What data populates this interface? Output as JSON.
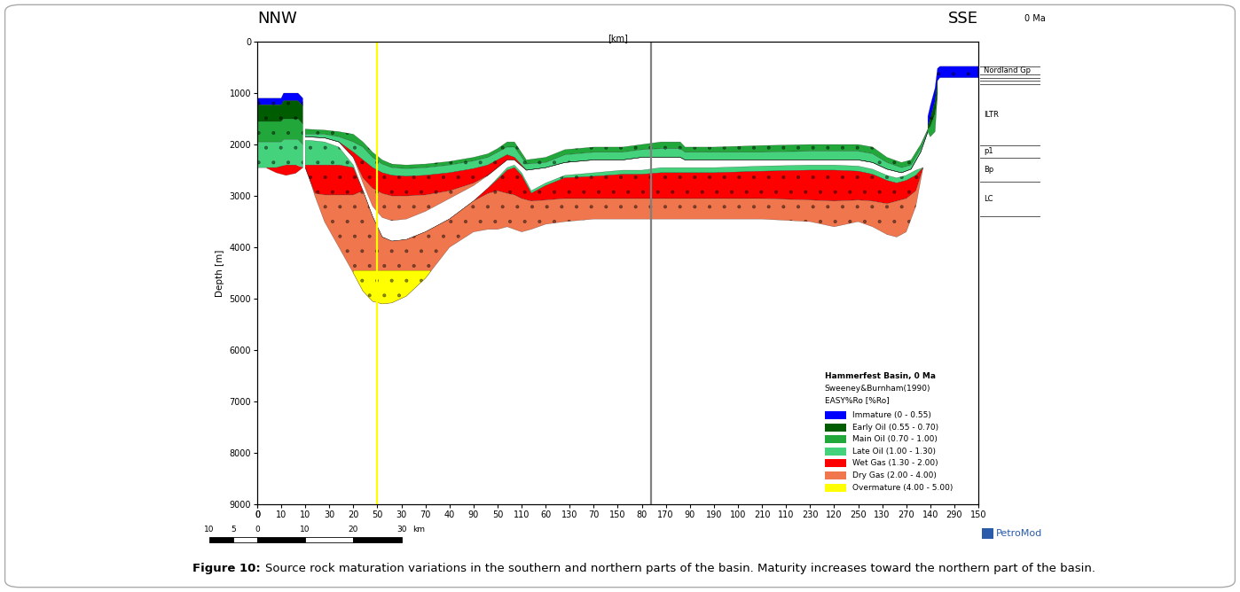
{
  "chart_data": {
    "type": "cross_section",
    "left_label": "NNW",
    "right_label": "SSE",
    "age_label": "0 Ma",
    "x_label": "[km]",
    "y_label": "Depth [m]",
    "xlim": [
      0,
      150
    ],
    "xticks": [
      0,
      10,
      20,
      30,
      40,
      50,
      60,
      70,
      80,
      90,
      100,
      110,
      120,
      130,
      140,
      150
    ],
    "x2lim": [
      0,
      300
    ],
    "x2ticks": [
      0,
      10,
      30,
      50,
      70,
      90,
      110,
      130,
      150,
      170,
      190,
      210,
      230,
      250,
      270,
      290
    ],
    "ylim": [
      9000,
      0
    ],
    "yticks": [
      0,
      1000,
      2000,
      3000,
      4000,
      5000,
      6000,
      7000,
      8000,
      9000
    ],
    "legend": "lower right",
    "legend_title": [
      "Hammerfest Basin, 0 Ma",
      "Sweeney&Burnham(1990)",
      "EASY%Ro [%Ro]"
    ],
    "zones": [
      {
        "name": "Immature (0 - 0.55)",
        "color": "#0000ff"
      },
      {
        "name": "Early Oil (0.55 - 0.70)",
        "color": "#005c00"
      },
      {
        "name": "Main Oil (0.70 - 1.00)",
        "color": "#22a83a"
      },
      {
        "name": "Late Oil (1.00 - 1.30)",
        "color": "#44d27c"
      },
      {
        "name": "Wet Gas (1.30 - 2.00)",
        "color": "#ff0000"
      },
      {
        "name": "Dry Gas (2.00 - 4.00)",
        "color": "#f0764e"
      },
      {
        "name": "Overmature (4.00 - 5.00)",
        "color": "#ffff00"
      }
    ],
    "bands": [
      {
        "zone": "Immature (0 - 0.55)",
        "x": [
          0,
          5,
          5.5,
          8.5,
          9,
          9.5
        ],
        "top": [
          1100,
          1100,
          1000,
          1000,
          1050,
          1100
        ],
        "base": [
          1230,
          1230,
          1150,
          1150,
          1200,
          1250
        ]
      },
      {
        "zone": "Early Oil (0.55 - 0.70)",
        "x": [
          0,
          5,
          5.5,
          8.5,
          9,
          9.5
        ],
        "top": [
          1230,
          1230,
          1150,
          1150,
          1200,
          1250
        ],
        "base": [
          1550,
          1550,
          1500,
          1500,
          1550,
          1600
        ]
      },
      {
        "zone": "Main Oil (0.70 - 1.00)",
        "x": [
          0,
          5,
          5.5,
          8.5,
          9,
          9.5
        ],
        "top": [
          1550,
          1550,
          1500,
          1500,
          1550,
          1600
        ],
        "base": [
          1950,
          1950,
          1900,
          1900,
          1950,
          2000
        ]
      },
      {
        "zone": "Late Oil (1.00 - 1.30)",
        "x": [
          0,
          5,
          5.5,
          8.5,
          9,
          9.5
        ],
        "top": [
          1950,
          1950,
          1900,
          1900,
          1950,
          2000
        ],
        "base": [
          2450,
          2450,
          2400,
          2400,
          2420,
          2450
        ]
      },
      {
        "zone": "Wet Gas (1.30 - 2.00)",
        "x": [
          2,
          4,
          6,
          8,
          9.5
        ],
        "top": [
          2450,
          2450,
          2400,
          2400,
          2450
        ],
        "base": [
          2460,
          2550,
          2600,
          2560,
          2450
        ]
      },
      {
        "zone": "Main Oil (0.70 - 1.00)",
        "x": [
          10,
          14,
          17,
          20,
          22,
          24,
          26,
          28,
          31,
          35,
          40,
          45,
          48,
          50,
          52,
          53.5,
          56,
          60,
          64,
          70,
          76,
          80,
          84,
          88,
          89,
          95,
          105,
          115,
          125,
          128,
          131,
          134,
          136,
          138,
          139.5
        ],
        "top": [
          1700,
          1720,
          1750,
          1800,
          1950,
          2150,
          2300,
          2380,
          2400,
          2380,
          2330,
          2250,
          2180,
          2080,
          1950,
          1950,
          2300,
          2250,
          2100,
          2050,
          2050,
          2000,
          1950,
          1950,
          2050,
          2050,
          2020,
          2000,
          2000,
          2050,
          2250,
          2350,
          2300,
          2000,
          1700
        ],
        "base": [
          1800,
          1800,
          1850,
          1950,
          2050,
          2250,
          2380,
          2450,
          2470,
          2450,
          2400,
          2320,
          2250,
          2150,
          2050,
          2050,
          2380,
          2350,
          2200,
          2150,
          2150,
          2100,
          2080,
          2080,
          2150,
          2150,
          2150,
          2130,
          2130,
          2180,
          2350,
          2450,
          2400,
          2080,
          1720
        ]
      },
      {
        "zone": "Late Oil (1.00 - 1.30)",
        "x": [
          10,
          14,
          17,
          20,
          22,
          24,
          26,
          28,
          31,
          35,
          40,
          45,
          48,
          50,
          52,
          53.5,
          56,
          60,
          64,
          70,
          76,
          80,
          84,
          88,
          89,
          95,
          105,
          115,
          125,
          128,
          131,
          134,
          136,
          138,
          139.5
        ],
        "top": [
          1800,
          1800,
          1850,
          1950,
          2050,
          2250,
          2380,
          2450,
          2470,
          2450,
          2400,
          2320,
          2250,
          2150,
          2050,
          2050,
          2380,
          2350,
          2200,
          2150,
          2150,
          2100,
          2080,
          2080,
          2150,
          2150,
          2150,
          2130,
          2130,
          2180,
          2350,
          2450,
          2400,
          2080,
          1720
        ],
        "base": [
          1850,
          1870,
          1950,
          2150,
          2300,
          2450,
          2550,
          2600,
          2620,
          2600,
          2550,
          2470,
          2400,
          2300,
          2200,
          2250,
          2500,
          2450,
          2350,
          2300,
          2300,
          2250,
          2250,
          2250,
          2300,
          2300,
          2300,
          2300,
          2300,
          2350,
          2480,
          2550,
          2480,
          2150,
          1750
        ]
      },
      {
        "zone": "Wet Gas (1.30 - 2.00)",
        "x": [
          10,
          14,
          17,
          20,
          22,
          24,
          26,
          28,
          31,
          35,
          40,
          45,
          48,
          50,
          52,
          53.5,
          56,
          60,
          64,
          70,
          76,
          80,
          84,
          88,
          89,
          95,
          105,
          115,
          125,
          128,
          131,
          134,
          136,
          138,
          139.5
        ],
        "top": [
          1850,
          1870,
          1950,
          2150,
          2300,
          2450,
          2550,
          2600,
          2620,
          2600,
          2550,
          2470,
          2400,
          2300,
          2200,
          2250,
          2500,
          2450,
          2350,
          2300,
          2300,
          2250,
          2250,
          2250,
          2300,
          2300,
          2300,
          2300,
          2300,
          2350,
          2480,
          2550,
          2480,
          2150,
          1750
        ],
        "base": [
          1850,
          1870,
          1950,
          2250,
          2650,
          2850,
          2950,
          3000,
          3000,
          2980,
          2900,
          2750,
          2600,
          2450,
          2300,
          2300,
          2500,
          2450,
          2350,
          2300,
          2300,
          2250,
          2250,
          2250,
          2300,
          2300,
          2300,
          2300,
          2300,
          2350,
          2480,
          2550,
          2480,
          2150,
          1750
        ]
      },
      {
        "zone": "Dry Gas (2.00 - 4.00)",
        "x": [
          10,
          14,
          17,
          20,
          22,
          24,
          26,
          28,
          31,
          35,
          40,
          45,
          48,
          50,
          52,
          53.5,
          56,
          60,
          64,
          70,
          76,
          80,
          84,
          88,
          89,
          95,
          105,
          115,
          125,
          128,
          131,
          134,
          136,
          138,
          139.5
        ],
        "top": [
          1850,
          1870,
          1950,
          2250,
          2650,
          2850,
          2950,
          3000,
          3000,
          2980,
          2900,
          2750,
          2600,
          2450,
          2300,
          2300,
          2500,
          2450,
          2350,
          2300,
          2300,
          2250,
          2250,
          2250,
          2300,
          2300,
          2300,
          2300,
          2300,
          2350,
          2480,
          2550,
          2480,
          2150,
          1750
        ],
        "base": [
          1850,
          1870,
          1950,
          2250,
          2750,
          3200,
          3420,
          3480,
          3450,
          3300,
          3050,
          2800,
          2600,
          2450,
          2300,
          2300,
          2500,
          2450,
          2350,
          2300,
          2300,
          2250,
          2250,
          2250,
          2300,
          2300,
          2300,
          2300,
          2300,
          2350,
          2480,
          2550,
          2480,
          2150,
          1750
        ]
      },
      {
        "zone": "Late Oil (1.00 - 1.30)",
        "x": [
          10,
          11,
          12,
          14,
          17,
          20,
          22,
          24,
          26,
          28,
          31,
          35,
          40,
          45,
          48,
          50,
          52,
          53.5,
          55,
          57,
          60,
          64,
          70,
          76,
          80,
          84,
          88,
          95,
          105,
          115,
          120,
          125,
          128,
          131,
          133,
          135,
          137,
          138.5
        ],
        "top": [
          1920,
          1920,
          1930,
          1950,
          2050,
          2400,
          2900,
          3400,
          3800,
          3880,
          3850,
          3700,
          3450,
          3100,
          2850,
          2650,
          2450,
          2400,
          2550,
          2900,
          2750,
          2600,
          2550,
          2500,
          2500,
          2450,
          2450,
          2450,
          2420,
          2400,
          2400,
          2420,
          2480,
          2600,
          2650,
          2600,
          2500,
          2450
        ],
        "base": [
          2400,
          2400,
          2400,
          2400,
          2400,
          2450,
          2900,
          3400,
          3800,
          3880,
          3850,
          3700,
          3450,
          3100,
          2850,
          2680,
          2500,
          2450,
          2600,
          2950,
          2800,
          2650,
          2620,
          2580,
          2580,
          2550,
          2550,
          2550,
          2520,
          2500,
          2500,
          2520,
          2580,
          2700,
          2750,
          2700,
          2600,
          2450
        ]
      },
      {
        "zone": "Wet Gas (1.30 - 2.00)",
        "x": [
          10,
          11,
          12,
          14,
          17,
          20,
          22,
          24,
          26,
          28,
          31,
          35,
          40,
          45,
          48,
          50,
          52,
          53.5,
          55,
          57,
          60,
          64,
          70,
          76,
          80,
          84,
          88,
          95,
          105,
          115,
          120,
          125,
          128,
          131,
          133,
          135,
          137,
          138.5
        ],
        "top": [
          2400,
          2400,
          2400,
          2400,
          2400,
          2450,
          2900,
          3400,
          3800,
          3880,
          3850,
          3700,
          3450,
          3100,
          2850,
          2680,
          2500,
          2450,
          2600,
          2950,
          2800,
          2650,
          2620,
          2580,
          2580,
          2550,
          2550,
          2550,
          2520,
          2500,
          2500,
          2520,
          2580,
          2700,
          2750,
          2700,
          2600,
          2450
        ],
        "base": [
          2450,
          2700,
          2950,
          2980,
          2980,
          2980,
          2900,
          3400,
          3800,
          3880,
          3850,
          3700,
          3450,
          3100,
          2950,
          2900,
          2950,
          2980,
          3050,
          3100,
          3080,
          3050,
          3050,
          3050,
          3050,
          3050,
          3050,
          3050,
          3050,
          3080,
          3100,
          3080,
          3100,
          3150,
          3100,
          3050,
          2900,
          2450
        ]
      },
      {
        "zone": "Dry Gas (2.00 - 4.00)",
        "x": [
          10,
          11,
          12,
          14,
          17,
          20,
          22,
          24,
          26,
          28,
          31,
          35,
          40,
          45,
          48,
          50,
          52,
          53.5,
          55,
          57,
          60,
          64,
          70,
          76,
          80,
          84,
          88,
          95,
          105,
          115,
          120,
          125,
          128,
          131,
          133,
          135,
          137,
          138.5
        ],
        "top": [
          2450,
          2700,
          2950,
          2980,
          2980,
          2980,
          2900,
          3400,
          3800,
          3880,
          3850,
          3700,
          3450,
          3100,
          2950,
          2900,
          2950,
          2980,
          3050,
          3100,
          3080,
          3050,
          3050,
          3050,
          3050,
          3050,
          3050,
          3050,
          3050,
          3080,
          3100,
          3080,
          3100,
          3150,
          3100,
          3050,
          2900,
          2450
        ],
        "base": [
          2450,
          2700,
          3000,
          3500,
          4000,
          4500,
          4850,
          5050,
          5100,
          5080,
          4950,
          4600,
          4000,
          3700,
          3650,
          3650,
          3600,
          3650,
          3700,
          3650,
          3550,
          3500,
          3450,
          3450,
          3450,
          3450,
          3450,
          3450,
          3450,
          3500,
          3600,
          3500,
          3600,
          3750,
          3800,
          3700,
          3200,
          2450
        ]
      },
      {
        "zone": "Overmature (4.00 - 5.00)",
        "x": [
          20,
          22,
          24,
          26,
          28,
          31,
          35,
          36
        ],
        "top": [
          4450,
          4450,
          4450,
          4450,
          4450,
          4450,
          4450,
          4450
        ],
        "base": [
          4500,
          4850,
          5050,
          5100,
          5080,
          4950,
          4600,
          4480
        ]
      },
      {
        "zone": "Immature (0 - 0.55)",
        "x": [
          139.5,
          140,
          141,
          141.5,
          142,
          150
        ],
        "top": [
          1450,
          1250,
          900,
          520,
          480,
          480
        ],
        "base": [
          1650,
          1500,
          1150,
          760,
          700,
          700
        ]
      },
      {
        "zone": "Early Oil (0.55 - 0.70)",
        "x": [
          139.5,
          140,
          141,
          141.5
        ],
        "top": [
          1650,
          1500,
          1150,
          760
        ],
        "base": [
          1700,
          1650,
          1400,
          1000
        ]
      },
      {
        "zone": "Main Oil (0.70 - 1.00)",
        "x": [
          139.5,
          140,
          141,
          141.5
        ],
        "top": [
          1700,
          1650,
          1400,
          1000
        ],
        "base": [
          1750,
          1850,
          1750,
          1000
        ]
      }
    ],
    "section_lines": [
      {
        "x": 25,
        "color": "#ffff00"
      },
      {
        "x": 82,
        "color": "#808080"
      }
    ],
    "stratigraphy": {
      "horizons": [
        480,
        640,
        700,
        760,
        820,
        2020,
        2250,
        2720,
        3400
      ],
      "units": [
        {
          "label": "Nordland Gp",
          "top": 480,
          "base": 640
        },
        {
          "label": "ILTR",
          "top": 820,
          "base": 2020
        },
        {
          "label": "p1",
          "top": 2020,
          "base": 2250
        },
        {
          "label": "Bp",
          "top": 2250,
          "base": 2720
        },
        {
          "label": "LC",
          "top": 2720,
          "base": 3400
        }
      ]
    },
    "scale_bar": {
      "ticks": [
        {
          "value": -10,
          "label": "10"
        },
        {
          "value": -5,
          "label": "5"
        },
        0,
        10,
        20,
        30
      ],
      "unit": "km"
    },
    "logo": "PetroMod",
    "caption": {
      "label": "Figure 10:",
      "text": "Source rock maturation variations in the southern and northern parts of the basin. Maturity increases toward the northern part of the basin."
    }
  }
}
